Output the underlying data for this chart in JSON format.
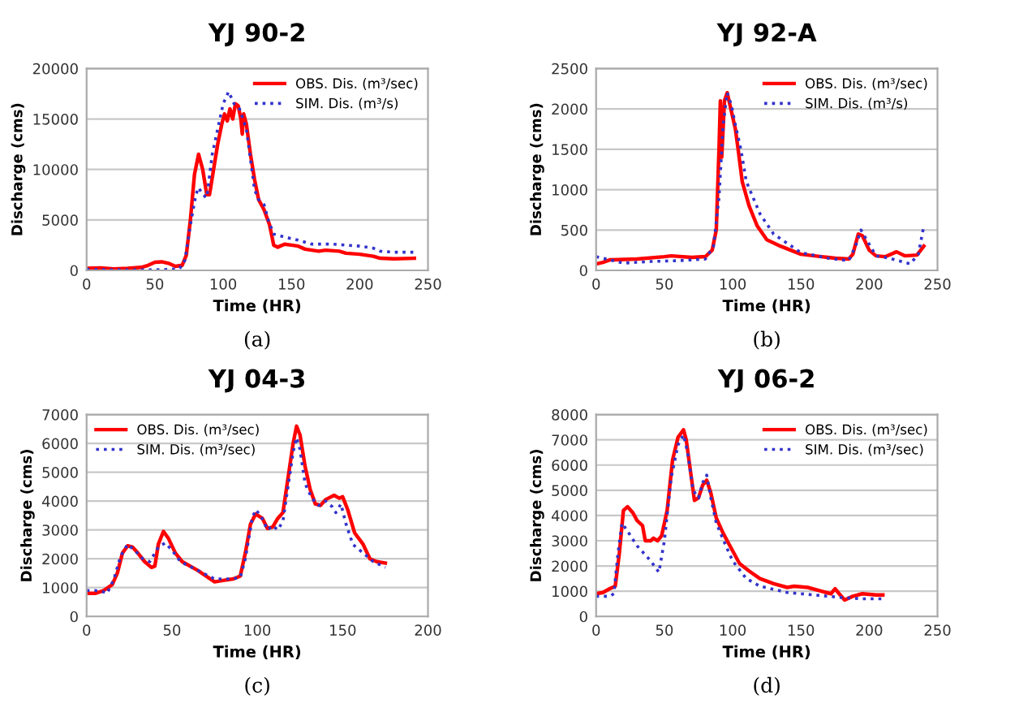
{
  "chart_data": [
    {
      "type": "line",
      "title": "YJ 90-2",
      "xlabel": "Time (HR)",
      "ylabel": "Discharge (cms)",
      "annotations": [
        "(a)"
      ],
      "xlim": [
        0,
        250
      ],
      "xticks": [
        0,
        50,
        100,
        150,
        200,
        250
      ],
      "ylim": [
        0,
        20000
      ],
      "yticks": [
        0,
        5000,
        10000,
        15000,
        20000
      ],
      "grid": "y",
      "legend": "top right",
      "marker": "none",
      "series": [
        {
          "name": "OBS. Dis. (m³/sec)",
          "color": "#ff0000",
          "line_style": "solid",
          "x": [
            0,
            10,
            20,
            30,
            40,
            45,
            50,
            55,
            60,
            65,
            70,
            73,
            76,
            79,
            82,
            85,
            88,
            90,
            93,
            96,
            99,
            101,
            103,
            105,
            107,
            109,
            111,
            113,
            114,
            115,
            117,
            120,
            123,
            126,
            130,
            134,
            137,
            140,
            145,
            150,
            155,
            160,
            170,
            175,
            185,
            190,
            200,
            210,
            215,
            225,
            240
          ],
          "values": [
            200,
            250,
            150,
            200,
            300,
            500,
            800,
            850,
            700,
            400,
            500,
            1500,
            5000,
            9500,
            11500,
            10000,
            7500,
            7500,
            10000,
            12500,
            14500,
            15500,
            14800,
            16000,
            15000,
            16500,
            16300,
            15000,
            13500,
            15500,
            14500,
            11500,
            9000,
            7000,
            6000,
            4500,
            2500,
            2300,
            2600,
            2500,
            2400,
            2100,
            1900,
            2000,
            1900,
            1700,
            1600,
            1400,
            1200,
            1150,
            1200
          ]
        },
        {
          "name": "SIM. Dis. (m³/s)",
          "color": "#3333cc",
          "line_style": "dotted",
          "x": [
            0,
            20,
            40,
            50,
            60,
            68,
            72,
            76,
            80,
            82,
            85,
            88,
            92,
            96,
            100,
            104,
            108,
            112,
            117,
            120,
            123,
            126,
            130,
            133,
            137,
            145,
            155,
            165,
            180,
            200,
            210,
            215,
            225,
            240
          ],
          "values": [
            100,
            50,
            50,
            50,
            100,
            150,
            1000,
            4500,
            7500,
            8200,
            7500,
            7200,
            11500,
            14000,
            16500,
            17700,
            16500,
            16000,
            14000,
            11000,
            8000,
            7000,
            6500,
            5000,
            3600,
            3300,
            3000,
            2600,
            2600,
            2400,
            2200,
            1900,
            1800,
            1800
          ]
        }
      ]
    },
    {
      "type": "line",
      "title": "YJ 92-A",
      "xlabel": "Time (HR)",
      "ylabel": "Discharge (cms)",
      "annotations": [
        "(b)"
      ],
      "xlim": [
        0,
        250
      ],
      "xticks": [
        0,
        50,
        100,
        150,
        200,
        250
      ],
      "ylim": [
        0,
        2500
      ],
      "yticks": [
        0,
        500,
        1000,
        1500,
        2000,
        2500
      ],
      "grid": "y",
      "legend": "top right",
      "marker": "none",
      "series": [
        {
          "name": "OBS. Dis. (m³/sec)",
          "color": "#ff0000",
          "line_style": "solid",
          "x": [
            0,
            5,
            10,
            30,
            50,
            55,
            70,
            80,
            85,
            88,
            90,
            91,
            92,
            94,
            96,
            98,
            100,
            102,
            104,
            107,
            112,
            118,
            125,
            135,
            150,
            165,
            175,
            185,
            188,
            192,
            195,
            200,
            205,
            212,
            220,
            226,
            235,
            240
          ],
          "values": [
            80,
            100,
            130,
            140,
            170,
            180,
            160,
            170,
            250,
            500,
            1500,
            2100,
            1400,
            2100,
            2200,
            2050,
            1900,
            1750,
            1500,
            1100,
            800,
            550,
            380,
            300,
            200,
            170,
            150,
            140,
            200,
            450,
            430,
            250,
            180,
            170,
            230,
            180,
            190,
            300
          ]
        },
        {
          "name": "SIM. Dis. (m³/s)",
          "color": "#3333cc",
          "line_style": "dotted",
          "x": [
            0,
            10,
            20,
            40,
            60,
            80,
            86,
            90,
            93,
            96,
            99,
            102,
            106,
            110,
            120,
            130,
            150,
            170,
            185,
            190,
            194,
            198,
            205,
            215,
            230,
            236,
            240
          ],
          "values": [
            170,
            130,
            90,
            110,
            120,
            140,
            300,
            900,
            1800,
            2200,
            2050,
            1800,
            1500,
            1100,
            700,
            450,
            220,
            150,
            120,
            300,
            500,
            380,
            180,
            150,
            80,
            200,
            550
          ]
        }
      ]
    },
    {
      "type": "line",
      "title": "YJ 04-3",
      "xlabel": "Time (HR)",
      "ylabel": "Discharge (cms)",
      "annotations": [
        "(c)"
      ],
      "xlim": [
        0,
        200
      ],
      "xticks": [
        0,
        50,
        100,
        150,
        200
      ],
      "ylim": [
        0,
        7000
      ],
      "yticks": [
        0,
        1000,
        2000,
        3000,
        4000,
        5000,
        6000,
        7000
      ],
      "grid": "y",
      "legend": "top left",
      "marker": "none",
      "series": [
        {
          "name": "OBS. Dis. (m³/sec)",
          "color": "#ff0000",
          "line_style": "solid",
          "x": [
            0,
            5,
            10,
            15,
            18,
            21,
            24,
            27,
            30,
            34,
            38,
            40,
            42,
            45,
            48,
            52,
            56,
            65,
            75,
            80,
            86,
            90,
            93,
            96,
            99,
            103,
            106,
            109,
            112,
            115,
            118,
            121,
            123,
            125,
            128,
            131,
            134,
            137,
            140,
            145,
            148,
            150,
            153,
            157,
            162,
            166,
            170,
            175
          ],
          "values": [
            800,
            800,
            900,
            1100,
            1500,
            2200,
            2450,
            2400,
            2200,
            1900,
            1700,
            1750,
            2500,
            2950,
            2700,
            2200,
            1900,
            1600,
            1200,
            1250,
            1300,
            1400,
            2200,
            3200,
            3550,
            3400,
            3050,
            3100,
            3400,
            3600,
            4800,
            6000,
            6600,
            6300,
            5200,
            4400,
            3900,
            3850,
            4050,
            4200,
            4100,
            4150,
            3700,
            2900,
            2500,
            2000,
            1900,
            1850
          ]
        },
        {
          "name": "SIM. Dis. (m³/sec)",
          "color": "#3333cc",
          "line_style": "dotted",
          "x": [
            0,
            5,
            10,
            12,
            16,
            20,
            24,
            28,
            33,
            37,
            42,
            46,
            50,
            55,
            65,
            75,
            85,
            90,
            93,
            97,
            99,
            102,
            106,
            109,
            112,
            115,
            118,
            121,
            123,
            125,
            128,
            132,
            136,
            140,
            144,
            146,
            149,
            152,
            156,
            162,
            168,
            175
          ],
          "values": [
            900,
            900,
            850,
            800,
            1300,
            2100,
            2500,
            2300,
            2000,
            1900,
            2400,
            2550,
            2300,
            1900,
            1600,
            1300,
            1300,
            1350,
            2000,
            3400,
            3700,
            3500,
            3000,
            3150,
            3000,
            3300,
            4500,
            5700,
            6200,
            5800,
            4600,
            4100,
            3850,
            4000,
            3800,
            3600,
            3900,
            3200,
            2500,
            2200,
            1900,
            1700
          ]
        }
      ]
    },
    {
      "type": "line",
      "title": "YJ 06-2",
      "xlabel": "Time (HR)",
      "ylabel": "Discharge (cms)",
      "annotations": [
        "(d)"
      ],
      "xlim": [
        0,
        250
      ],
      "xticks": [
        0,
        50,
        100,
        150,
        200,
        250
      ],
      "ylim": [
        0,
        8000
      ],
      "yticks": [
        0,
        1000,
        2000,
        3000,
        4000,
        5000,
        6000,
        7000,
        8000
      ],
      "grid": "y",
      "legend": "top right",
      "marker": "none",
      "series": [
        {
          "name": "OBS. Dis. (m³/sec)",
          "color": "#ff0000",
          "line_style": "solid",
          "x": [
            0,
            5,
            10,
            14,
            17,
            20,
            23,
            27,
            30,
            34,
            36,
            40,
            42,
            45,
            48,
            52,
            56,
            60,
            64,
            66,
            69,
            72,
            75,
            78,
            81,
            84,
            88,
            93,
            98,
            105,
            112,
            120,
            130,
            140,
            145,
            155,
            165,
            172,
            175,
            178,
            182,
            188,
            195,
            205,
            210
          ],
          "values": [
            900,
            950,
            1100,
            1200,
            2500,
            4200,
            4350,
            4100,
            3800,
            3600,
            3000,
            3000,
            3100,
            3000,
            3200,
            4200,
            6200,
            7100,
            7400,
            7000,
            5800,
            4600,
            4700,
            5200,
            5400,
            4900,
            3900,
            3300,
            2800,
            2100,
            1800,
            1500,
            1300,
            1150,
            1200,
            1150,
            1000,
            900,
            1100,
            900,
            650,
            800,
            900,
            850,
            850
          ]
        },
        {
          "name": "SIM. Dis. (m³/sec)",
          "color": "#3333cc",
          "line_style": "dotted",
          "x": [
            0,
            10,
            13,
            16,
            19,
            24,
            30,
            40,
            46,
            50,
            55,
            60,
            64,
            67,
            71,
            75,
            78,
            81,
            84,
            88,
            95,
            100,
            110,
            120,
            140,
            160,
            180,
            195,
            210
          ],
          "values": [
            800,
            800,
            900,
            2500,
            3700,
            3300,
            2800,
            2200,
            1750,
            3000,
            5500,
            6800,
            7200,
            6500,
            5000,
            4700,
            5300,
            5600,
            4700,
            3700,
            2800,
            2200,
            1500,
            1200,
            950,
            850,
            750,
            700,
            700
          ]
        }
      ]
    }
  ]
}
